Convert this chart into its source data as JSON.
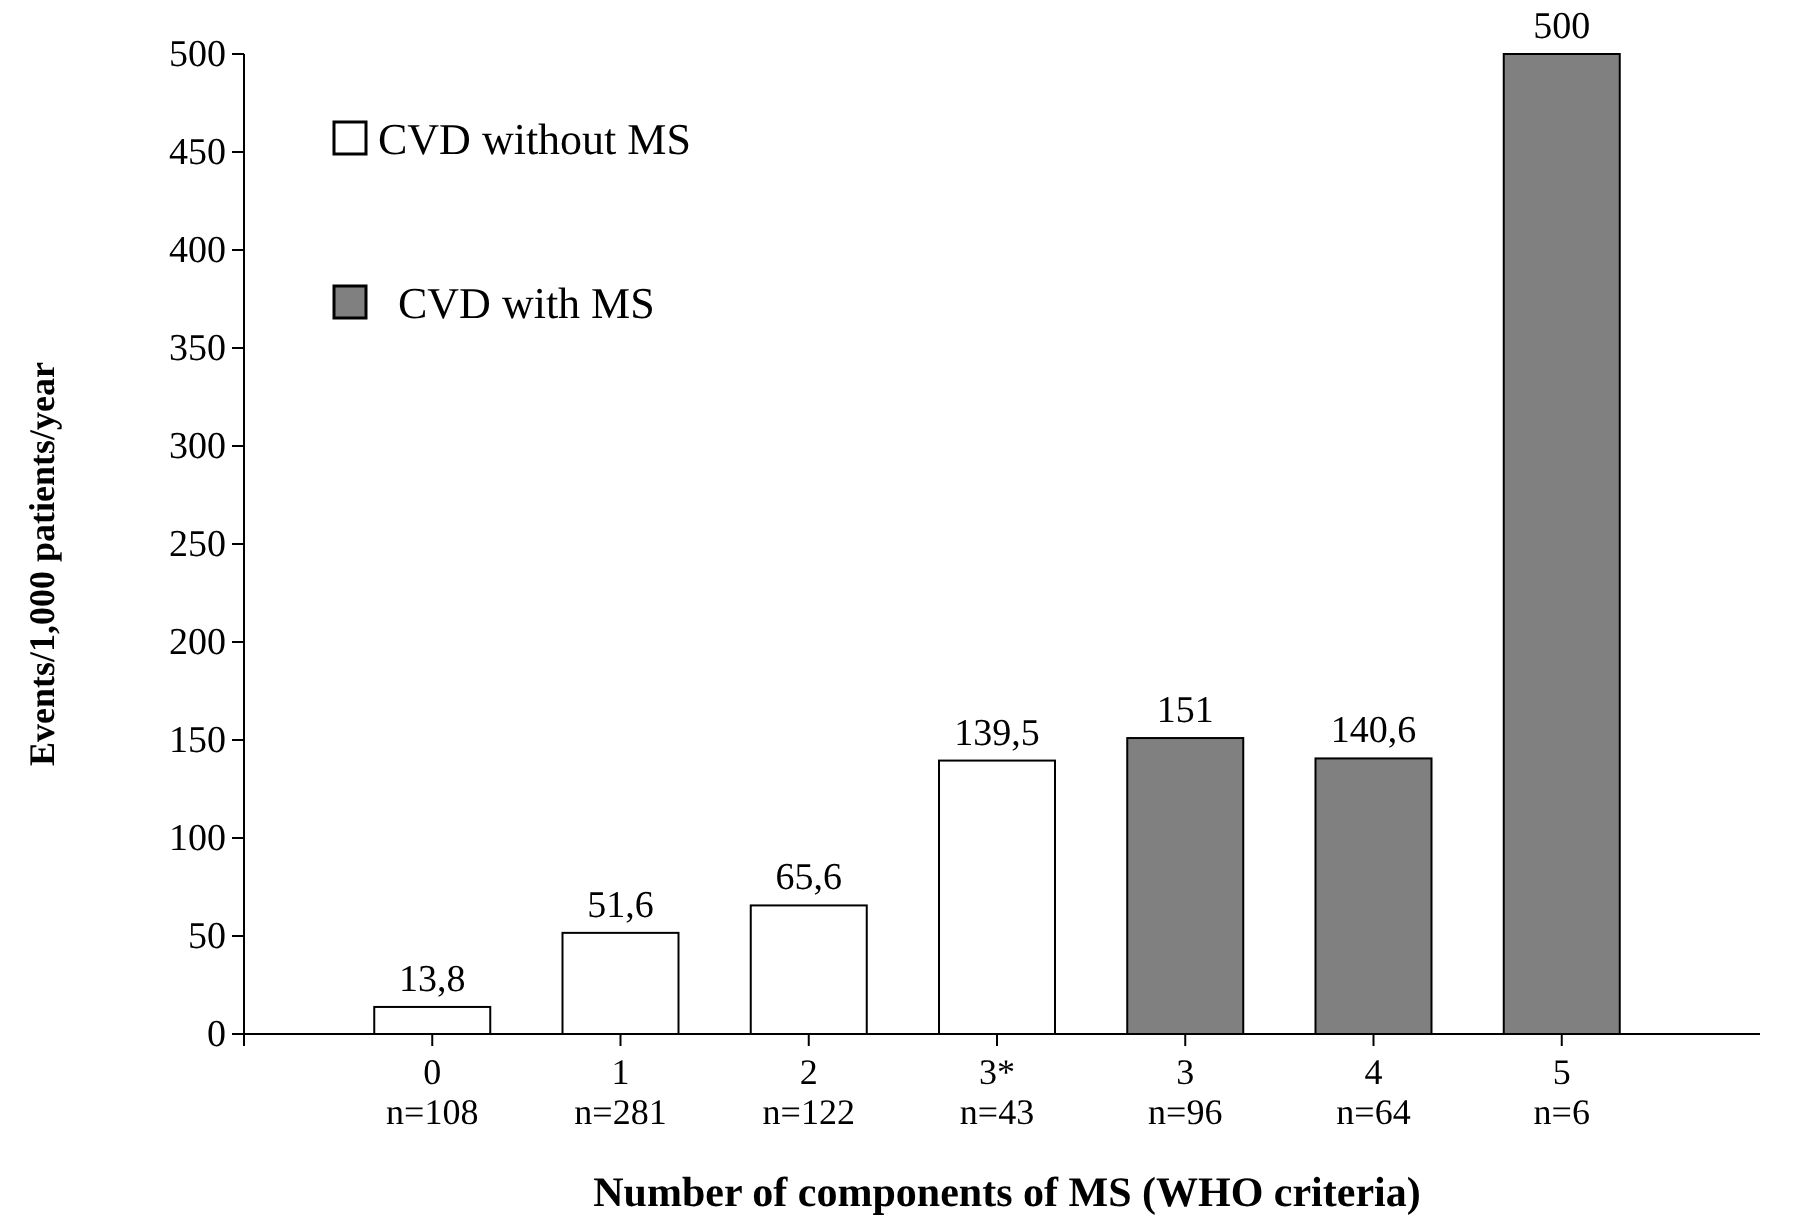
{
  "chart_data": {
    "type": "bar",
    "xlabel": "Number of components of MS (WHO criteria)",
    "ylabel": "Events/1,000 patients/year",
    "categories": [
      "0\nn=108",
      "1\nn=281",
      "2\nn=122",
      "3*\nn=43",
      "3\nn=96",
      "4\nn=64",
      "5\nn=6"
    ],
    "series": [
      {
        "name": "CVD without MS",
        "color": "#ffffff",
        "values": [
          13.8,
          51.6,
          65.6,
          139.5,
          null,
          null,
          null
        ],
        "value_labels": [
          "13,8",
          "51,6",
          "65,6",
          "139,5",
          null,
          null,
          null
        ]
      },
      {
        "name": "CVD with MS",
        "color": "#808080",
        "values": [
          null,
          null,
          null,
          null,
          151,
          140.6,
          500
        ],
        "value_labels": [
          null,
          null,
          null,
          null,
          "151",
          "140,6",
          "500"
        ]
      }
    ],
    "ylim": [
      0,
      500
    ],
    "yticks": [
      0,
      50,
      100,
      150,
      200,
      250,
      300,
      350,
      400,
      450,
      500
    ],
    "legend": "top left"
  }
}
